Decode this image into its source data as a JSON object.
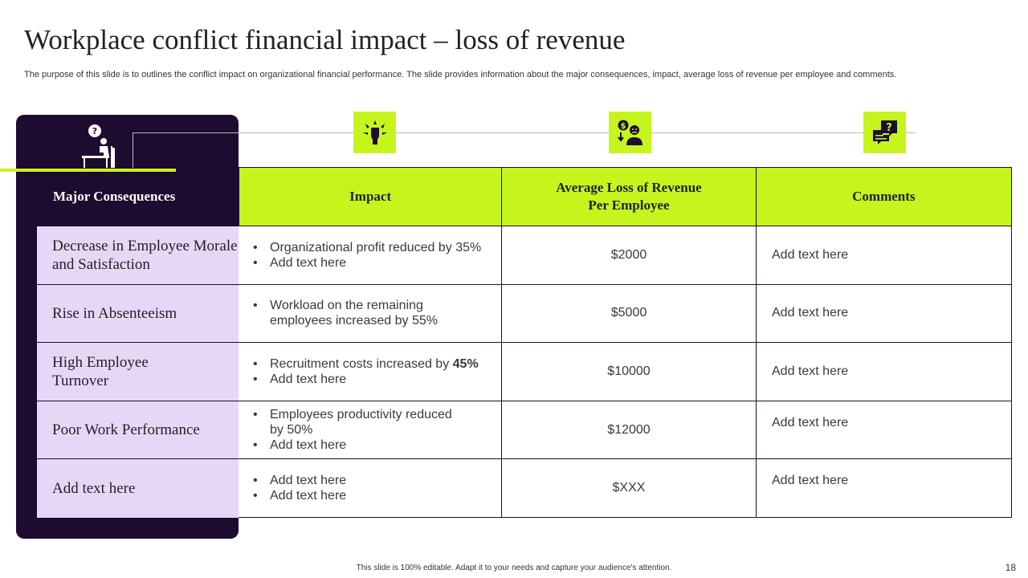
{
  "title": "Workplace conflict financial impact – loss of revenue",
  "subtitle": "The purpose of this slide is to outlines the conflict impact on organizational financial performance. The slide provides information about the major consequences, impact, average loss of revenue per employee and comments.",
  "colors": {
    "accent": "#c6f51e",
    "dark": "#1e0b30",
    "lavender": "#e8d6f7"
  },
  "icons": [
    "person-question-icon",
    "fist-burst-icon",
    "money-stress-icon",
    "question-chat-icon"
  ],
  "table": {
    "headers": {
      "consequences": "Major Consequences",
      "impact": "Impact",
      "loss_line1": "Average Loss of Revenue",
      "loss_line2": "Per Employee",
      "comments": "Comments"
    },
    "rows": [
      {
        "consequence": "Decrease in Employee Morale and Satisfaction",
        "impact_1": "Organizational profit reduced by 35%",
        "impact_2": "Add text here",
        "loss": "$2000",
        "comment": "Add text here"
      },
      {
        "consequence": "Rise in Absenteeism",
        "impact_1": "Workload on the remaining employees increased by 55%",
        "loss": "$5000",
        "comment": "Add text here"
      },
      {
        "consequence": "High Employee Turnover",
        "impact_1a": "Recruitment costs increased by ",
        "impact_1b": "45%",
        "impact_2": "Add text here",
        "loss": "$10000",
        "comment": "Add text here"
      },
      {
        "consequence": "Poor Work Performance",
        "impact_1": "Employees productivity reduced by 50%",
        "impact_2": "Add text here",
        "loss": "$12000",
        "comment": "Add text here"
      },
      {
        "consequence": "Add text here",
        "impact_1": "Add text here",
        "impact_2": "Add text here",
        "loss": "$XXX",
        "comment": "Add text here"
      }
    ]
  },
  "footer": "This slide is 100% editable. Adapt it to your needs and capture your audience's attention.",
  "page_number": "18"
}
